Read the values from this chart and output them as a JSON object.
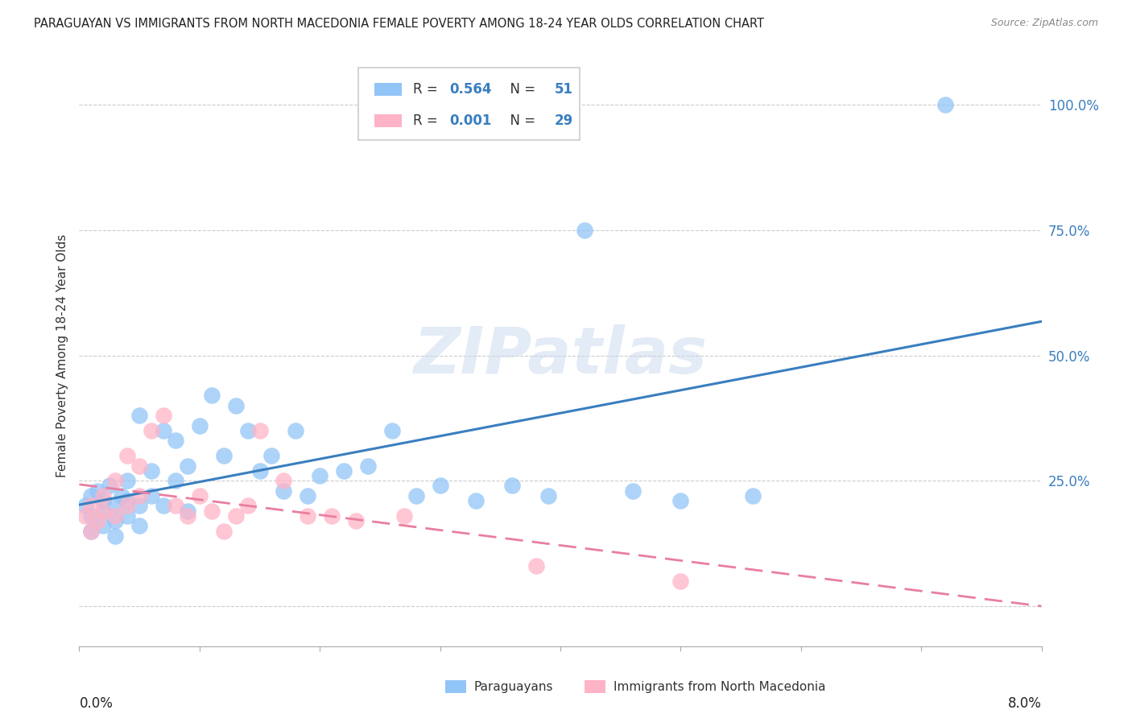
{
  "title": "PARAGUAYAN VS IMMIGRANTS FROM NORTH MACEDONIA FEMALE POVERTY AMONG 18-24 YEAR OLDS CORRELATION CHART",
  "source": "Source: ZipAtlas.com",
  "ylabel": "Female Poverty Among 18-24 Year Olds",
  "xmin": 0.0,
  "xmax": 0.08,
  "ymin": -0.08,
  "ymax": 1.08,
  "blue_color": "#92c5f7",
  "pink_color": "#ffb3c6",
  "blue_line_color": "#3a7ebf",
  "pink_line_color": "#e87fa0",
  "legend_r1_label": "R = ",
  "legend_r1_val": "0.564",
  "legend_n1_label": "  N = ",
  "legend_n1_val": "51",
  "legend_r2_label": "R = ",
  "legend_r2_val": "0.001",
  "legend_n2_label": "  N = ",
  "legend_n2_val": "29",
  "watermark": "ZIPatlas",
  "paraguayans_x": [
    0.0005,
    0.001,
    0.001,
    0.001,
    0.0015,
    0.002,
    0.002,
    0.002,
    0.0025,
    0.003,
    0.003,
    0.003,
    0.0035,
    0.004,
    0.004,
    0.004,
    0.005,
    0.005,
    0.005,
    0.006,
    0.006,
    0.007,
    0.007,
    0.008,
    0.008,
    0.009,
    0.009,
    0.01,
    0.011,
    0.012,
    0.013,
    0.014,
    0.015,
    0.016,
    0.017,
    0.018,
    0.019,
    0.02,
    0.022,
    0.024,
    0.026,
    0.028,
    0.03,
    0.033,
    0.036,
    0.039,
    0.042,
    0.046,
    0.05,
    0.056,
    0.072
  ],
  "paraguayans_y": [
    0.2,
    0.18,
    0.22,
    0.15,
    0.23,
    0.19,
    0.21,
    0.16,
    0.24,
    0.2,
    0.17,
    0.14,
    0.22,
    0.25,
    0.18,
    0.21,
    0.38,
    0.2,
    0.16,
    0.27,
    0.22,
    0.35,
    0.2,
    0.33,
    0.25,
    0.28,
    0.19,
    0.36,
    0.42,
    0.3,
    0.4,
    0.35,
    0.27,
    0.3,
    0.23,
    0.35,
    0.22,
    0.26,
    0.27,
    0.28,
    0.35,
    0.22,
    0.24,
    0.21,
    0.24,
    0.22,
    0.75,
    0.23,
    0.21,
    0.22,
    1.0
  ],
  "macedonia_x": [
    0.0005,
    0.001,
    0.001,
    0.0015,
    0.002,
    0.002,
    0.003,
    0.003,
    0.004,
    0.004,
    0.005,
    0.005,
    0.006,
    0.007,
    0.008,
    0.009,
    0.01,
    0.011,
    0.012,
    0.013,
    0.014,
    0.015,
    0.017,
    0.019,
    0.021,
    0.023,
    0.027,
    0.038,
    0.05
  ],
  "macedonia_y": [
    0.18,
    0.15,
    0.2,
    0.17,
    0.22,
    0.19,
    0.25,
    0.18,
    0.3,
    0.2,
    0.28,
    0.22,
    0.35,
    0.38,
    0.2,
    0.18,
    0.22,
    0.19,
    0.15,
    0.18,
    0.2,
    0.35,
    0.25,
    0.18,
    0.18,
    0.17,
    0.18,
    0.08,
    0.05
  ]
}
